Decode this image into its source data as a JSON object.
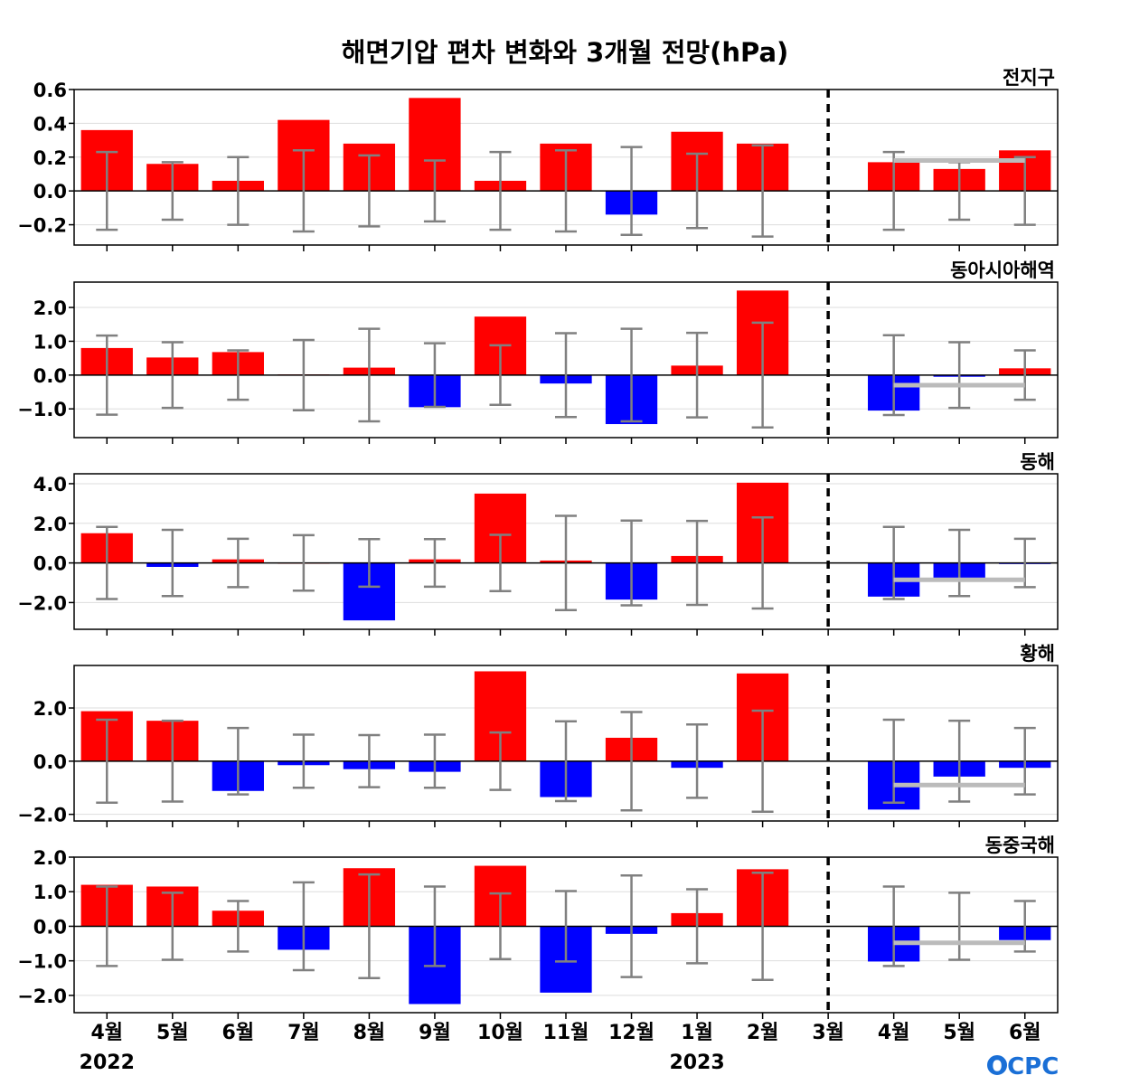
{
  "title": "해면기압 편차 변화와 3개월 전망(hPa)",
  "logo_text": "OCPC",
  "colors": {
    "positive": "#ff0000",
    "negative": "#0000ff",
    "errorbar": "#808080",
    "forecast_line": "#bbbbbb",
    "grid": "#dddddd"
  },
  "x_categories": [
    "4월",
    "5월",
    "6월",
    "7월",
    "8월",
    "9월",
    "10월",
    "11월",
    "12월",
    "1월",
    "2월",
    "3월",
    "4월",
    "5월",
    "6월"
  ],
  "year_labels": [
    {
      "text": "2022",
      "index": 0
    },
    {
      "text": "2023",
      "index": 9
    }
  ],
  "forecast_divider_after_index": 11,
  "chart_data": [
    {
      "type": "bar",
      "title": "전지구",
      "ylim": [
        -0.32,
        0.6
      ],
      "yticks": [
        -0.2,
        0.0,
        0.2,
        0.4,
        0.6
      ],
      "ytick_labels": [
        "−0.2",
        "0.0",
        "0.2",
        "0.4",
        "0.6"
      ],
      "values": [
        0.36,
        0.16,
        0.06,
        0.42,
        0.28,
        0.55,
        0.06,
        0.28,
        -0.14,
        0.35,
        0.28,
        0.0,
        0.17,
        0.13,
        0.24
      ],
      "error_bars": [
        0.23,
        0.17,
        0.2,
        0.24,
        0.21,
        0.18,
        0.23,
        0.24,
        0.26,
        0.22,
        0.27,
        null,
        0.23,
        0.17,
        0.2
      ],
      "forecast_mean": 0.18
    },
    {
      "type": "bar",
      "title": "동아시아해역",
      "ylim": [
        -1.85,
        2.75
      ],
      "yticks": [
        -1.0,
        0.0,
        1.0,
        2.0
      ],
      "ytick_labels": [
        "−1.0",
        "0.0",
        "1.0",
        "2.0"
      ],
      "values": [
        0.8,
        0.52,
        0.68,
        0.02,
        0.22,
        -0.95,
        1.73,
        -0.25,
        -1.45,
        0.28,
        2.5,
        0.0,
        -1.05,
        -0.05,
        0.2
      ],
      "error_bars": [
        1.17,
        0.97,
        0.73,
        1.04,
        1.37,
        0.94,
        0.88,
        1.24,
        1.37,
        1.25,
        1.55,
        null,
        1.18,
        0.97,
        0.73
      ],
      "forecast_mean": -0.3
    },
    {
      "type": "bar",
      "title": "동해",
      "ylim": [
        -3.35,
        4.5
      ],
      "yticks": [
        -2.0,
        0.0,
        2.0,
        4.0
      ],
      "ytick_labels": [
        "−2.0",
        "0.0",
        "2.0",
        "4.0"
      ],
      "values": [
        1.5,
        -0.2,
        0.18,
        0.02,
        -2.9,
        0.18,
        3.5,
        0.12,
        -1.85,
        0.35,
        4.05,
        0.0,
        -1.7,
        -0.75,
        -0.05
      ],
      "error_bars": [
        1.82,
        1.67,
        1.22,
        1.4,
        1.2,
        1.2,
        1.42,
        2.38,
        2.14,
        2.12,
        2.3,
        null,
        1.82,
        1.67,
        1.22
      ],
      "forecast_mean": -0.85
    },
    {
      "type": "bar",
      "title": "황해",
      "ylim": [
        -2.25,
        3.6
      ],
      "yticks": [
        -2.0,
        0.0,
        2.0
      ],
      "ytick_labels": [
        "−2.0",
        "0.0",
        "2.0"
      ],
      "values": [
        1.88,
        1.52,
        -1.12,
        -0.15,
        -0.3,
        -0.4,
        3.38,
        -1.35,
        0.88,
        -0.25,
        3.3,
        0.0,
        -1.82,
        -0.58,
        -0.25
      ],
      "error_bars": [
        1.56,
        1.52,
        1.25,
        1.0,
        0.98,
        1.0,
        1.08,
        1.5,
        1.85,
        1.38,
        1.9,
        null,
        1.56,
        1.52,
        1.25
      ],
      "forecast_mean": -0.9
    },
    {
      "type": "bar",
      "title": "동중국해",
      "ylim": [
        -2.5,
        2.0
      ],
      "yticks": [
        -2.0,
        -1.0,
        0.0,
        1.0,
        2.0
      ],
      "ytick_labels": [
        "−2.0",
        "−1.0",
        "0.0",
        "1.0",
        "2.0"
      ],
      "values": [
        1.2,
        1.15,
        0.45,
        -0.68,
        1.68,
        -2.25,
        1.75,
        -1.92,
        -0.22,
        0.38,
        1.65,
        0.0,
        -1.02,
        0.0,
        -0.4
      ],
      "error_bars": [
        1.15,
        0.97,
        0.73,
        1.27,
        1.5,
        1.15,
        0.95,
        1.02,
        1.47,
        1.07,
        1.55,
        null,
        1.15,
        0.97,
        0.73
      ],
      "forecast_mean": -0.48
    }
  ]
}
